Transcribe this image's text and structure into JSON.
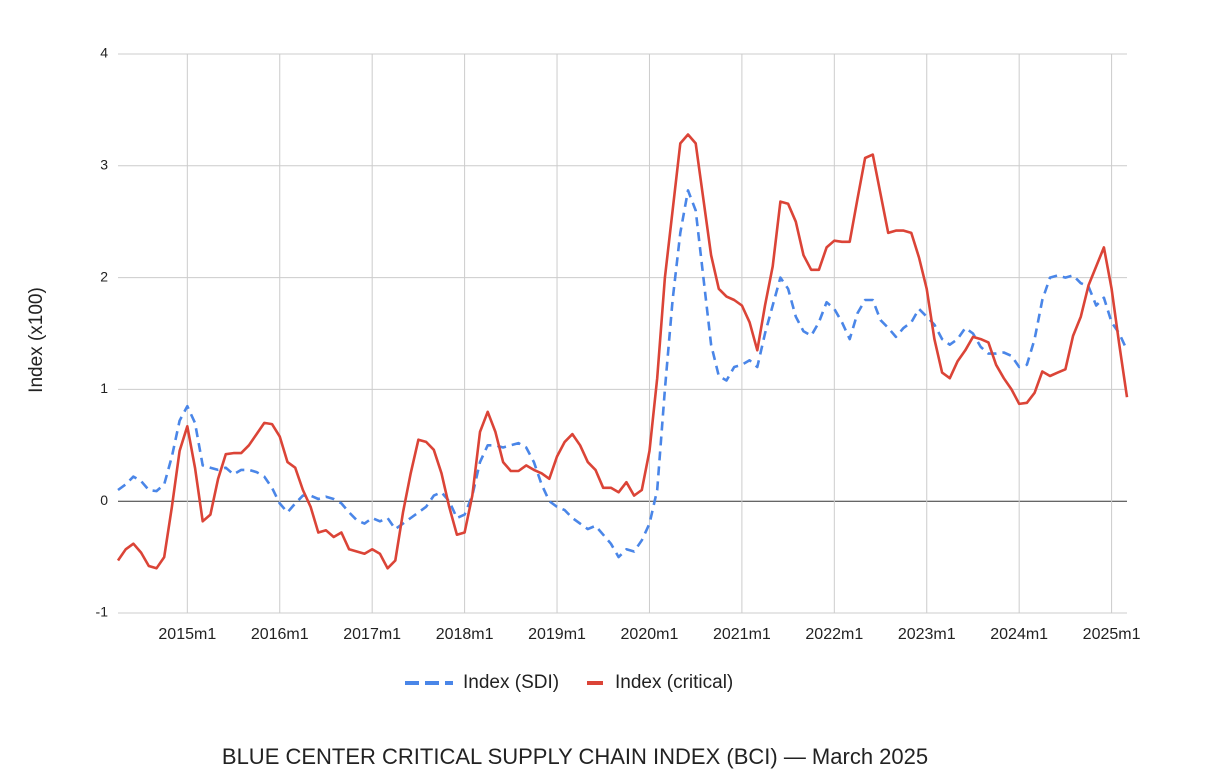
{
  "chart_data": {
    "type": "line",
    "title": "BLUE CENTER CRITICAL SUPPLY CHAIN INDEX (BCI) — March 2025",
    "y_label": "Index (x100)",
    "categories": [
      null,
      null,
      null,
      null,
      null,
      null,
      null,
      null,
      null,
      "2015m1",
      null,
      null,
      null,
      null,
      null,
      null,
      null,
      null,
      null,
      null,
      null,
      "2016m1",
      null,
      null,
      null,
      null,
      null,
      null,
      null,
      null,
      null,
      null,
      null,
      "2017m1",
      null,
      null,
      null,
      null,
      null,
      null,
      null,
      null,
      null,
      null,
      null,
      "2018m1",
      null,
      null,
      null,
      null,
      null,
      null,
      null,
      null,
      null,
      null,
      null,
      "2019m1",
      null,
      null,
      null,
      null,
      null,
      null,
      null,
      null,
      null,
      null,
      null,
      "2020m1",
      null,
      null,
      null,
      null,
      null,
      null,
      null,
      null,
      null,
      null,
      null,
      "2021m1",
      null,
      null,
      null,
      null,
      null,
      null,
      null,
      null,
      null,
      null,
      null,
      "2022m1",
      null,
      null,
      null,
      null,
      null,
      null,
      null,
      null,
      null,
      null,
      null,
      "2023m1",
      null,
      null,
      null,
      null,
      null,
      null,
      null,
      null,
      null,
      null,
      null,
      "2024m1",
      null,
      null,
      null,
      null,
      null,
      null,
      null,
      null,
      null,
      null,
      null,
      "2025m1",
      null,
      null
    ],
    "series": [
      {
        "name": "Index (SDI)",
        "color": "#4a86e8",
        "dashed": true,
        "values": [
          0.1,
          0.15,
          0.22,
          0.18,
          0.1,
          0.09,
          0.15,
          0.4,
          0.72,
          0.85,
          0.7,
          0.32,
          0.3,
          0.28,
          0.3,
          0.24,
          0.28,
          0.28,
          0.26,
          0.22,
          0.12,
          -0.02,
          -0.1,
          -0.02,
          0.05,
          0.05,
          0.02,
          0.04,
          0.02,
          -0.02,
          -0.1,
          -0.17,
          -0.2,
          -0.15,
          -0.18,
          -0.15,
          -0.25,
          -0.2,
          -0.15,
          -0.1,
          -0.05,
          0.05,
          0.08,
          0.0,
          -0.15,
          -0.12,
          0.05,
          0.35,
          0.5,
          0.5,
          0.48,
          0.5,
          0.52,
          0.48,
          0.35,
          0.15,
          0.0,
          -0.05,
          -0.08,
          -0.15,
          -0.2,
          -0.25,
          -0.22,
          -0.3,
          -0.38,
          -0.5,
          -0.43,
          -0.45,
          -0.35,
          -0.2,
          0.1,
          1.0,
          1.8,
          2.4,
          2.78,
          2.6,
          2.0,
          1.4,
          1.12,
          1.08,
          1.2,
          1.22,
          1.26,
          1.2,
          1.5,
          1.75,
          2.0,
          1.9,
          1.65,
          1.52,
          1.48,
          1.6,
          1.78,
          1.72,
          1.6,
          1.45,
          1.68,
          1.8,
          1.8,
          1.62,
          1.55,
          1.47,
          1.55,
          1.6,
          1.72,
          1.65,
          1.58,
          1.45,
          1.4,
          1.45,
          1.55,
          1.5,
          1.38,
          1.32,
          1.32,
          1.33,
          1.3,
          1.2,
          1.22,
          1.45,
          1.8,
          2.0,
          2.02,
          2.0,
          2.02,
          1.95,
          1.92,
          1.75,
          1.82,
          1.6,
          1.5,
          1.35
        ]
      },
      {
        "name": "Index (critical)",
        "color": "#db4437",
        "dashed": false,
        "values": [
          -0.53,
          -0.43,
          -0.38,
          -0.46,
          -0.58,
          -0.6,
          -0.5,
          -0.05,
          0.45,
          0.67,
          0.3,
          -0.18,
          -0.12,
          0.2,
          0.42,
          0.43,
          0.43,
          0.5,
          0.6,
          0.7,
          0.69,
          0.58,
          0.35,
          0.3,
          0.1,
          -0.05,
          -0.28,
          -0.26,
          -0.32,
          -0.28,
          -0.43,
          -0.45,
          -0.47,
          -0.43,
          -0.47,
          -0.6,
          -0.53,
          -0.1,
          0.25,
          0.55,
          0.53,
          0.46,
          0.25,
          -0.05,
          -0.3,
          -0.28,
          0.05,
          0.62,
          0.8,
          0.62,
          0.35,
          0.27,
          0.27,
          0.32,
          0.28,
          0.25,
          0.2,
          0.4,
          0.53,
          0.6,
          0.5,
          0.35,
          0.28,
          0.12,
          0.12,
          0.08,
          0.17,
          0.05,
          0.1,
          0.45,
          1.1,
          2.0,
          2.6,
          3.2,
          3.28,
          3.2,
          2.7,
          2.2,
          1.9,
          1.83,
          1.8,
          1.75,
          1.6,
          1.35,
          1.75,
          2.1,
          2.68,
          2.66,
          2.5,
          2.2,
          2.07,
          2.07,
          2.27,
          2.33,
          2.32,
          2.32,
          2.7,
          3.07,
          3.1,
          2.75,
          2.4,
          2.42,
          2.42,
          2.4,
          2.18,
          1.9,
          1.45,
          1.15,
          1.1,
          1.25,
          1.35,
          1.47,
          1.45,
          1.42,
          1.22,
          1.1,
          1.0,
          0.87,
          0.88,
          0.97,
          1.16,
          1.12,
          1.15,
          1.18,
          1.48,
          1.65,
          1.93,
          2.1,
          2.27,
          1.9,
          1.4,
          0.93
        ]
      }
    ],
    "ylim": [
      -1,
      4
    ],
    "yticks": [
      -1,
      0,
      1,
      2,
      3,
      4
    ],
    "grid": true,
    "legend": "bottom"
  }
}
